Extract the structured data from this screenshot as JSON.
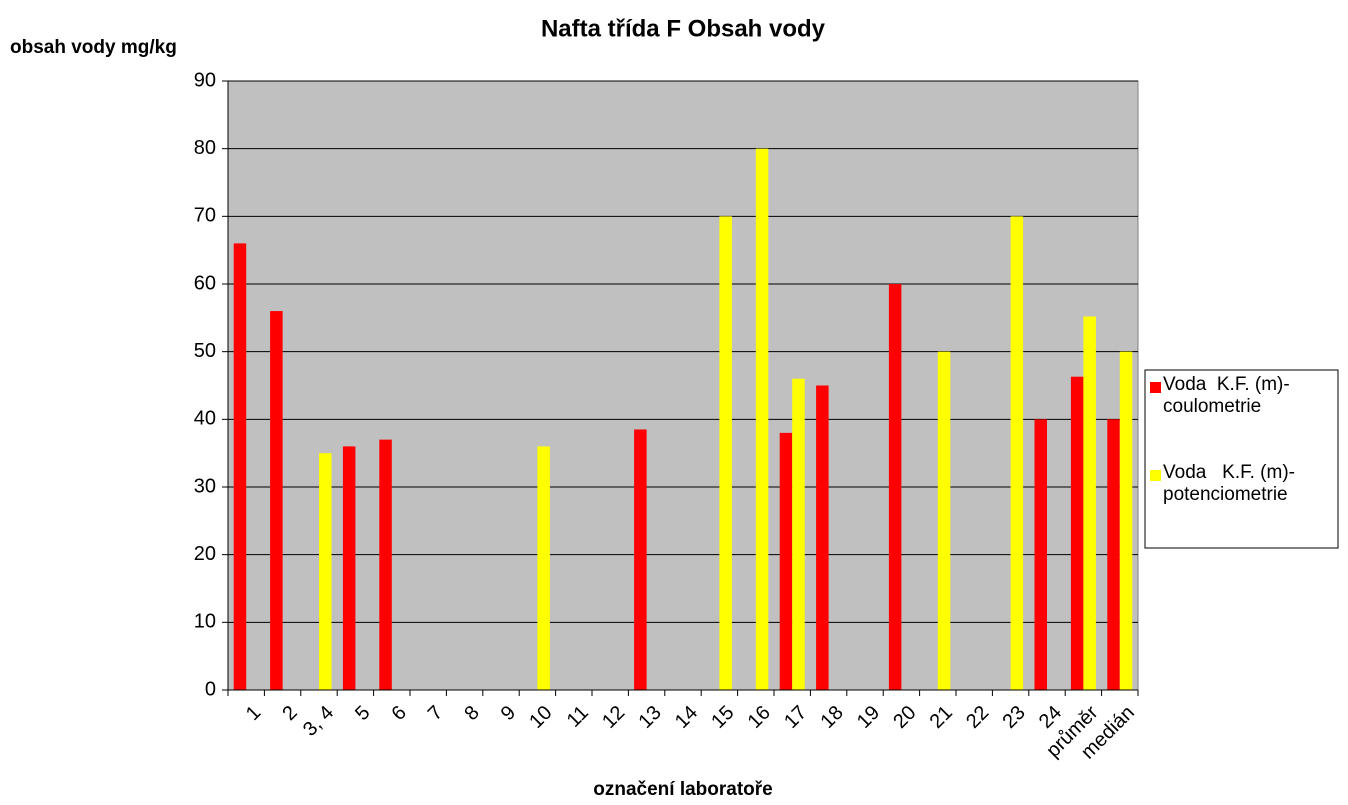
{
  "chart_data": {
    "type": "bar",
    "title": "Nafta třída F  Obsah vody",
    "y_label": "obsah vody mg/kg",
    "x_label": "označení laboratoře",
    "categories": [
      "1",
      "2",
      "3, 4",
      "5",
      "6",
      "7",
      "8",
      "9",
      "10",
      "11",
      "12",
      "13",
      "14",
      "15",
      "16",
      "17",
      "18",
      "19",
      "20",
      "21",
      "22",
      "23",
      "24",
      "průměr",
      "medián"
    ],
    "series": [
      {
        "name": "Voda  K.F. (m)-coulometrie",
        "color": "#ff0000",
        "values": [
          66,
          56,
          null,
          36,
          37,
          null,
          null,
          null,
          null,
          null,
          null,
          38.5,
          null,
          null,
          null,
          38,
          45,
          null,
          60,
          null,
          null,
          null,
          40,
          46.3,
          40
        ]
      },
      {
        "name": "Voda   K.F. (m)-potenciometrie",
        "color": "#ffff00",
        "values": [
          null,
          null,
          35,
          null,
          null,
          null,
          null,
          null,
          36,
          null,
          null,
          null,
          null,
          70,
          80,
          46,
          null,
          null,
          null,
          50,
          null,
          70,
          null,
          55.2,
          50
        ]
      }
    ],
    "ylim": [
      0,
      90
    ],
    "yticks": [
      0,
      10,
      20,
      30,
      40,
      50,
      60,
      70,
      80,
      90
    ],
    "grid": true,
    "legend": "right"
  }
}
